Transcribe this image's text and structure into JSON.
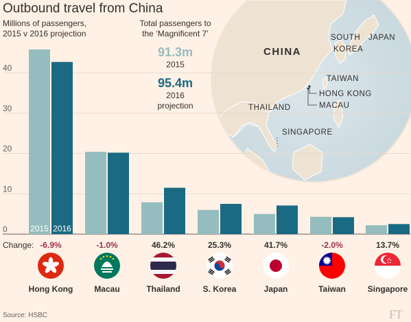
{
  "header": {
    "title": "Outbound travel from China",
    "subtitle_line1": "Millions of passengers,",
    "subtitle_line2": "2015 v 2016 projection"
  },
  "callout": {
    "heading_line1": "Total passengers to",
    "heading_line2": "the ‘Magnificent 7’",
    "value_2015": "91.3m",
    "label_2015": "2015",
    "value_2016": "95.4m",
    "label_2016_line1": "2016",
    "label_2016_line2": "projection"
  },
  "map": {
    "labels": [
      "CHINA",
      "SOUTH",
      "KOREA",
      "JAPAN",
      "TAIWAN",
      "HONG KONG",
      "MACAU",
      "THAILAND",
      "SINGAPORE"
    ]
  },
  "footer": {
    "source": "Source: HSBC",
    "logo": "FT"
  },
  "colors": {
    "background": "#fff1e5",
    "bar_2015": "#95bdbf",
    "bar_2016": "#1b6a84",
    "negative_change": "#9e2f50",
    "positive_change": "#33302e"
  },
  "chart_data": {
    "type": "bar",
    "categories": [
      "Hong Kong",
      "Macau",
      "Thailand",
      "S. Korea",
      "Japan",
      "Taiwan",
      "Singapore"
    ],
    "series": [
      {
        "name": "2015",
        "values": [
          45.8,
          20.4,
          7.9,
          6.0,
          5.0,
          4.3,
          2.2
        ]
      },
      {
        "name": "2016",
        "values": [
          42.7,
          20.2,
          11.5,
          7.5,
          7.1,
          4.2,
          2.5
        ]
      }
    ],
    "change_label": "Change:",
    "changes": [
      "-6.9%",
      "-1.0%",
      "46.2%",
      "25.3%",
      "41.7%",
      "-2.0%",
      "13.7%"
    ],
    "flags": [
      "hong-kong-flag",
      "macau-flag",
      "thailand-flag",
      "south-korea-flag",
      "japan-flag",
      "taiwan-flag",
      "singapore-flag"
    ],
    "ylim": [
      0,
      47
    ],
    "yticks": [
      0,
      10,
      20,
      30,
      40
    ],
    "grid": true,
    "legend": "inside first bars"
  }
}
